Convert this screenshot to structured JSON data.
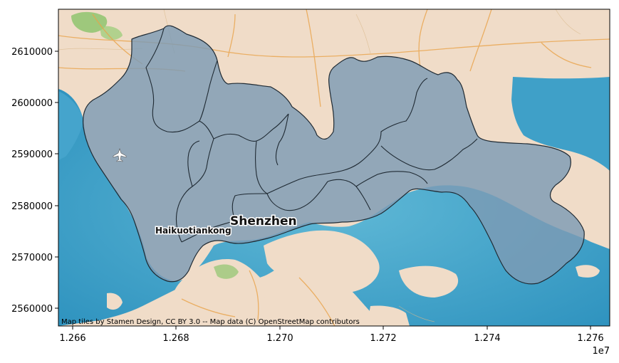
{
  "map": {
    "x_ticks": [
      "1.266",
      "1.268",
      "1.270",
      "1.272",
      "1.274",
      "1.276"
    ],
    "y_ticks": [
      "2610000",
      "2600000",
      "2590000",
      "2580000",
      "2570000",
      "2560000"
    ],
    "x_offset": "1e7",
    "labels": {
      "city": "Shenzhen",
      "district": "Haikuotiankong"
    },
    "attribution": "Map tiles by Stamen Design, CC BY 3.0 -- Map data (C) OpenStreetMap contributors",
    "colors": {
      "land": "#f0dcc8",
      "water": "#4aa8cc",
      "boundary_fill": "#7d9bb4",
      "boundary_stroke": "#1f2a33",
      "roads": "#e9a34a"
    },
    "icons": [
      "airport-icon"
    ]
  }
}
